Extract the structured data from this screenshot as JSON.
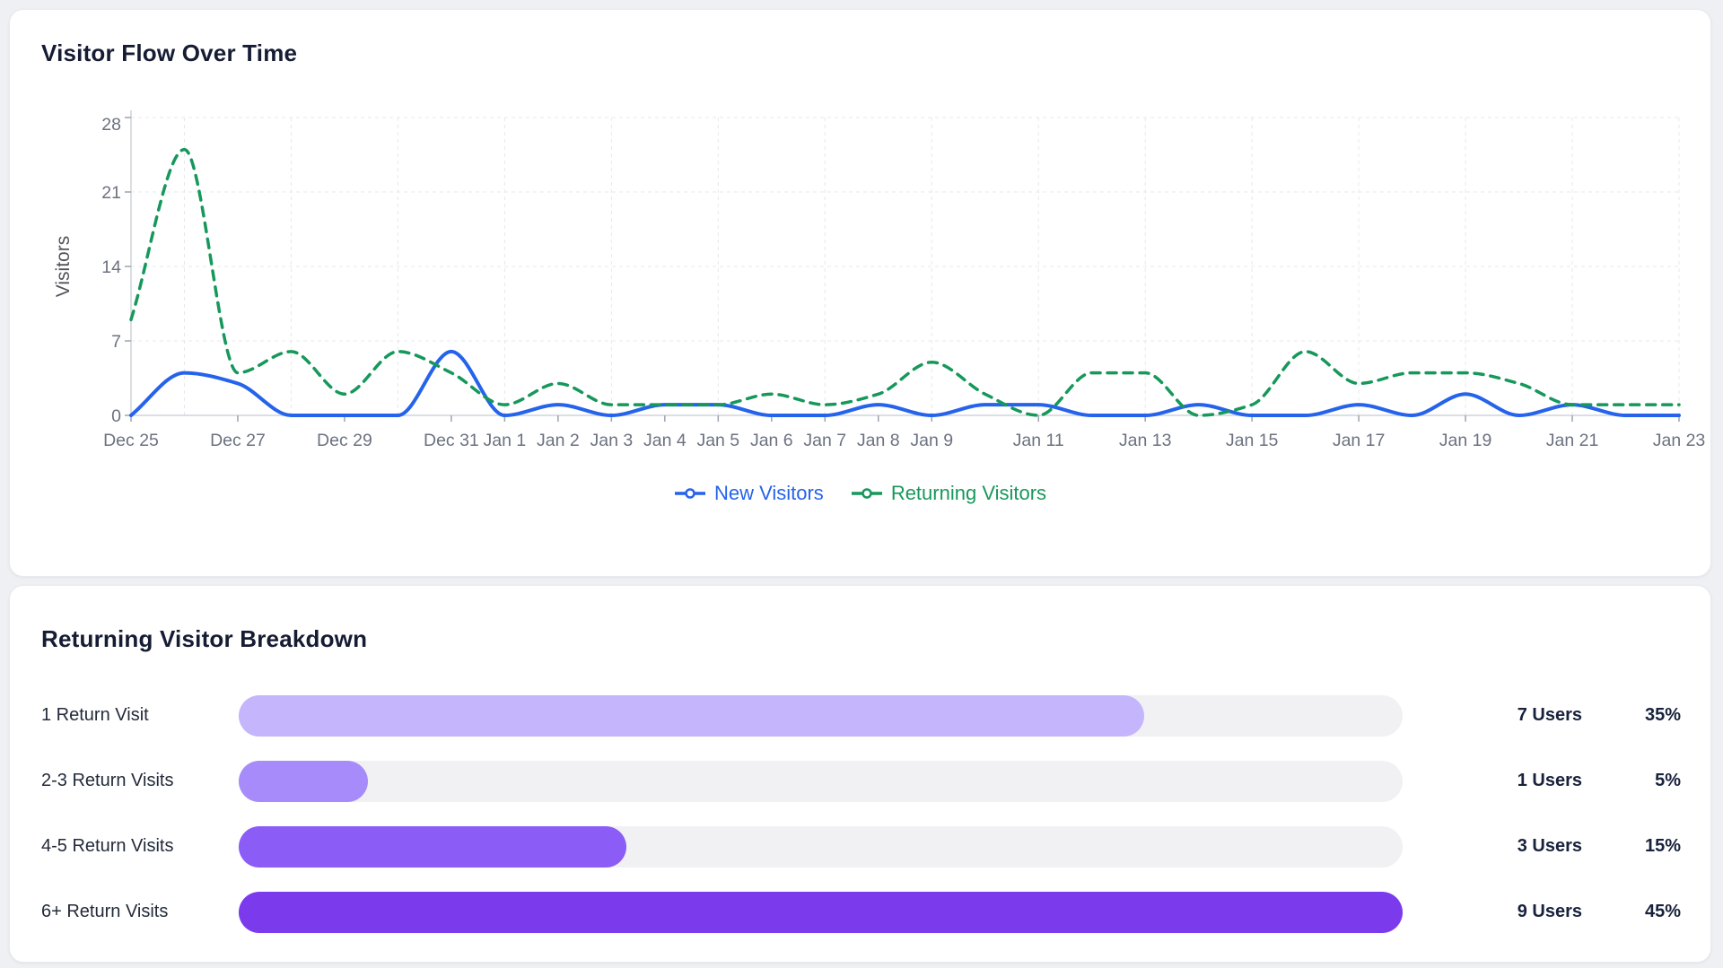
{
  "page": {
    "background": "#eef0f4"
  },
  "flow_card": {
    "title": "Visitor Flow Over Time"
  },
  "breakdown_card": {
    "title": "Returning Visitor Breakdown",
    "rows": [
      {
        "label": "1 Return Visit",
        "users": 7,
        "users_label": "7 Users",
        "percent": 35,
        "percent_label": "35%",
        "color": "#c4b5fd"
      },
      {
        "label": "2-3 Return Visits",
        "users": 1,
        "users_label": "1 Users",
        "percent": 5,
        "percent_label": "5%",
        "color": "#a78bfa"
      },
      {
        "label": "4-5 Return Visits",
        "users": 3,
        "users_label": "3 Users",
        "percent": 15,
        "percent_label": "15%",
        "color": "#8b5cf6"
      },
      {
        "label": "6+ Return Visits",
        "users": 9,
        "users_label": "9 Users",
        "percent": 45,
        "percent_label": "45%",
        "color": "#7c3aed"
      }
    ],
    "bar_scale_max": 45
  },
  "chart_data": [
    {
      "type": "line",
      "title": "Visitor Flow Over Time",
      "xlabel": "",
      "ylabel": "Visitors",
      "ylim": [
        0,
        28
      ],
      "y_ticks": [
        0,
        7,
        14,
        21,
        28
      ],
      "grid": "dashed; horizontal at y ticks, vertical every 2nd day starting Dec 26",
      "legend_position": "bottom center",
      "x": [
        "Dec 25",
        "Dec 26",
        "Dec 27",
        "Dec 28",
        "Dec 29",
        "Dec 30",
        "Dec 31",
        "Jan 1",
        "Jan 2",
        "Jan 3",
        "Jan 4",
        "Jan 5",
        "Jan 6",
        "Jan 7",
        "Jan 8",
        "Jan 9",
        "Jan 10",
        "Jan 11",
        "Jan 12",
        "Jan 13",
        "Jan 14",
        "Jan 15",
        "Jan 16",
        "Jan 17",
        "Jan 18",
        "Jan 19",
        "Jan 20",
        "Jan 21",
        "Jan 22",
        "Jan 23"
      ],
      "x_ticks": [
        {
          "index": 0,
          "label": "Dec 25"
        },
        {
          "index": 2,
          "label": "Dec 27"
        },
        {
          "index": 4,
          "label": "Dec 29"
        },
        {
          "index": 6,
          "label": "Dec 31"
        },
        {
          "index": 7,
          "label": "Jan 1"
        },
        {
          "index": 8,
          "label": "Jan 2"
        },
        {
          "index": 9,
          "label": "Jan 3"
        },
        {
          "index": 10,
          "label": "Jan 4"
        },
        {
          "index": 11,
          "label": "Jan 5"
        },
        {
          "index": 12,
          "label": "Jan 6"
        },
        {
          "index": 13,
          "label": "Jan 7"
        },
        {
          "index": 14,
          "label": "Jan 8"
        },
        {
          "index": 15,
          "label": "Jan 9"
        },
        {
          "index": 17,
          "label": "Jan 11"
        },
        {
          "index": 19,
          "label": "Jan 13"
        },
        {
          "index": 21,
          "label": "Jan 15"
        },
        {
          "index": 23,
          "label": "Jan 17"
        },
        {
          "index": 25,
          "label": "Jan 19"
        },
        {
          "index": 27,
          "label": "Jan 21"
        },
        {
          "index": 29,
          "label": "Jan 23"
        }
      ],
      "gridline_indices": [
        1,
        3,
        5,
        7,
        9,
        11,
        13,
        15,
        17,
        19,
        21,
        23,
        25,
        27,
        29
      ],
      "series": [
        {
          "name": "New Visitors",
          "color": "#2563eb",
          "style": "solid",
          "values": [
            0,
            4,
            3,
            0,
            0,
            0,
            6,
            0,
            1,
            0,
            1,
            1,
            0,
            0,
            1,
            0,
            1,
            1,
            0,
            0,
            1,
            0,
            0,
            1,
            0,
            2,
            0,
            1,
            0,
            0
          ]
        },
        {
          "name": "Returning Visitors",
          "color": "#16985b",
          "style": "dashed",
          "values": [
            9,
            25,
            4,
            6,
            2,
            6,
            4,
            1,
            3,
            1,
            1,
            1,
            2,
            1,
            2,
            5,
            2,
            0,
            4,
            4,
            0,
            1,
            6,
            3,
            4,
            4,
            3,
            1,
            1,
            1
          ]
        }
      ]
    },
    {
      "type": "bar",
      "orientation": "horizontal",
      "title": "Returning Visitor Breakdown",
      "categories": [
        "1 Return Visit",
        "2-3 Return Visits",
        "4-5 Return Visits",
        "6+ Return Visits"
      ],
      "values": [
        35,
        5,
        15,
        45
      ],
      "users": [
        7,
        1,
        3,
        9
      ],
      "value_unit": "%",
      "xlim": [
        0,
        45
      ],
      "bar_colors": [
        "#c4b5fd",
        "#a78bfa",
        "#8b5cf6",
        "#7c3aed"
      ],
      "track_color": "#f1f1f4"
    }
  ]
}
